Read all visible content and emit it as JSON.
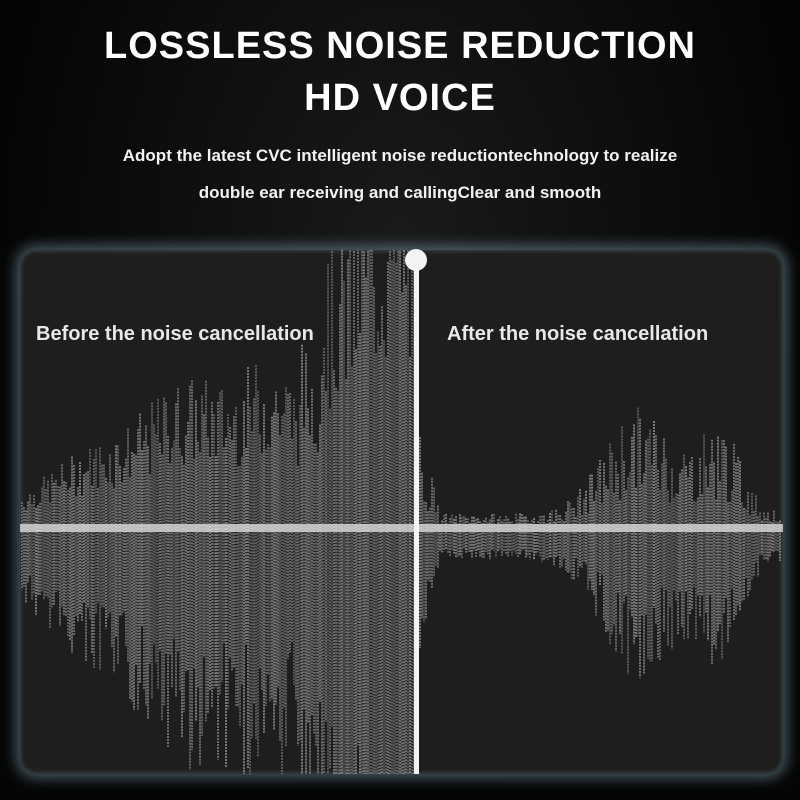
{
  "header": {
    "title_line1": "LOSSLESS NOISE REDUCTION",
    "title_line2": "HD VOICE",
    "subtitle_line1": "Adopt the latest CVC intelligent noise reductiontechnology to realize",
    "subtitle_line2": "double ear receiving and callingClear and smooth"
  },
  "comparison": {
    "before_label": "Before the noise cancellation",
    "after_label": "After the noise cancellation"
  },
  "colors": {
    "background": "#0a0a0a",
    "panel": "#1e1e1e",
    "panel_glow": "#96c8dc",
    "waveform": "#e6e6e6"
  }
}
